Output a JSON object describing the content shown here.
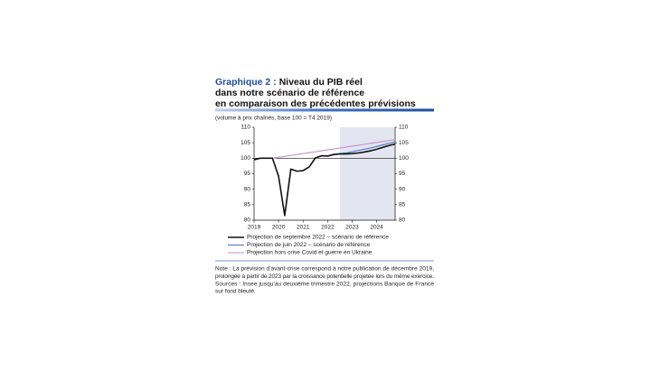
{
  "header": {
    "label": "Graphique 2 :",
    "title_lines": [
      "Niveau du PIB réel",
      "dans notre scénario de référence",
      "en comparaison des précédentes prévisions"
    ]
  },
  "chart_data": {
    "type": "line",
    "subtitle": "(volume à prix chaînés, base 100 = T4 2019)",
    "x": [
      2019,
      2019.25,
      2019.5,
      2019.75,
      2020,
      2020.25,
      2020.5,
      2020.75,
      2021,
      2021.25,
      2021.5,
      2021.75,
      2022,
      2022.25,
      2022.5,
      2022.75,
      2023,
      2023.25,
      2023.5,
      2023.75,
      2024,
      2024.25,
      2024.5,
      2024.75
    ],
    "xlim": [
      2019,
      2024.75
    ],
    "xticks": [
      2019,
      2020,
      2021,
      2022,
      2023,
      2024
    ],
    "ylim": [
      80,
      110
    ],
    "yticks": [
      80,
      85,
      90,
      95,
      100,
      105,
      110
    ],
    "y2lim": [
      80,
      110
    ],
    "y2ticks": [
      80,
      85,
      90,
      95,
      100,
      105,
      110
    ],
    "reference_line": 100,
    "shaded_from": 2022.5,
    "shade_color": "#e3e5f1",
    "series": [
      {
        "name": "Projection hors crise Covid et guerre en Ukraine",
        "color": "#c98dcc",
        "values": [
          null,
          null,
          null,
          100,
          100.3,
          100.6,
          100.9,
          101.2,
          101.5,
          101.8,
          102.1,
          102.4,
          102.7,
          103,
          103.3,
          103.6,
          103.9,
          104.2,
          104.5,
          104.8,
          105.1,
          105.4,
          105.7,
          106
        ]
      },
      {
        "name": "Projection de juin 2022 – scénario de référence",
        "color": "#3f6fc4",
        "values": [
          null,
          null,
          null,
          null,
          null,
          null,
          null,
          null,
          null,
          null,
          null,
          100.8,
          100.7,
          101.1,
          101.5,
          101.7,
          102.1,
          102.5,
          102.9,
          103.3,
          103.8,
          104.3,
          104.8,
          105.3
        ]
      },
      {
        "name": "Projection de septembre 2022 – scénario de référence",
        "color": "#111111",
        "values": [
          99.5,
          100,
          100,
          100,
          94.2,
          81.5,
          96.5,
          95.8,
          96,
          97.2,
          100.1,
          100.8,
          100.7,
          101.2,
          101.4,
          101.4,
          101.5,
          101.7,
          102,
          102.4,
          102.9,
          103.5,
          104.1,
          104.6
        ]
      }
    ]
  },
  "notes": [
    "Note : La prévision d'avant-crise correspond à notre publication de décembre 2019,",
    "prolongée à partir de 2023 par la croissance potentielle projetée lors du même exercice.",
    "Sources : Insee jusqu'au deuxième trimestre 2022, projections Banque de France",
    "sur fond bleuté."
  ]
}
